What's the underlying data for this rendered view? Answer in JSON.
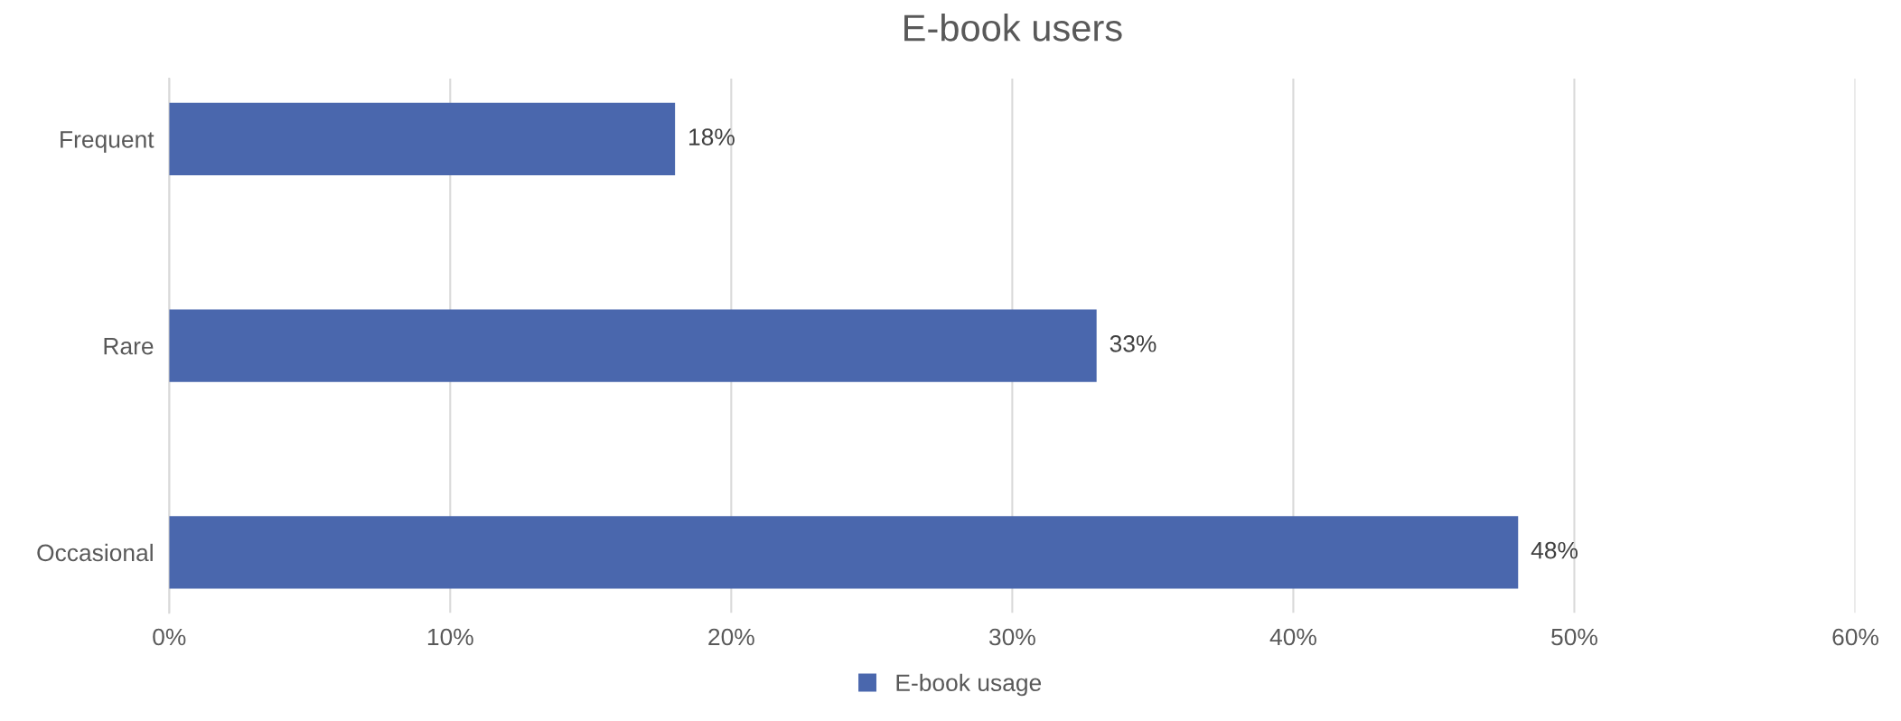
{
  "chart_data": {
    "type": "bar",
    "orientation": "horizontal",
    "title": "E-book users",
    "categories": [
      "Frequent",
      "Rare",
      "Occasional"
    ],
    "series": [
      {
        "name": "E-book usage",
        "color": "#4a67ad",
        "values": [
          18,
          33,
          48
        ],
        "value_labels": [
          "18%",
          "33%",
          "48%"
        ]
      }
    ],
    "xlim": [
      0,
      60
    ],
    "xticks": [
      {
        "value": 0,
        "label": "0%"
      },
      {
        "value": 10,
        "label": "10%"
      },
      {
        "value": 20,
        "label": "20%"
      },
      {
        "value": 30,
        "label": "30%"
      },
      {
        "value": 40,
        "label": "40%"
      },
      {
        "value": 50,
        "label": "50%"
      },
      {
        "value": 60,
        "label": "60%"
      }
    ],
    "grid": "x",
    "legend": "bottom"
  }
}
